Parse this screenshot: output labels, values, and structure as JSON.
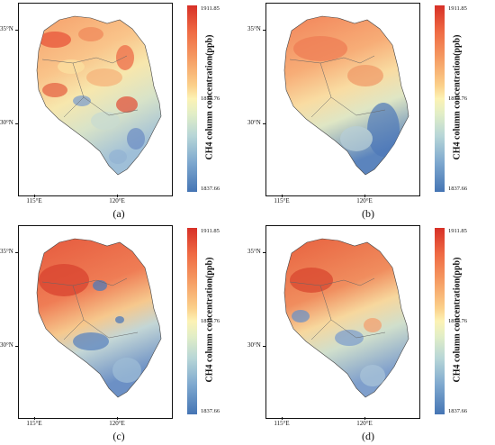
{
  "panels": [
    {
      "id": "a",
      "label": "(a)"
    },
    {
      "id": "b",
      "label": "(b)"
    },
    {
      "id": "c",
      "label": "(c)"
    },
    {
      "id": "d",
      "label": "(d)"
    }
  ],
  "axes": {
    "y_ticks": [
      "35°N",
      "30°N"
    ],
    "x_ticks": [
      "115°E",
      "120°E"
    ]
  },
  "colorbar": {
    "title": "CH4 column concentration(ppb)",
    "max": "1911.85",
    "mid": "1874.76",
    "min": "1837.66",
    "colors": [
      "#d73027",
      "#f59a62",
      "#fcf2b4",
      "#7fa9cf",
      "#4575b4"
    ]
  }
}
